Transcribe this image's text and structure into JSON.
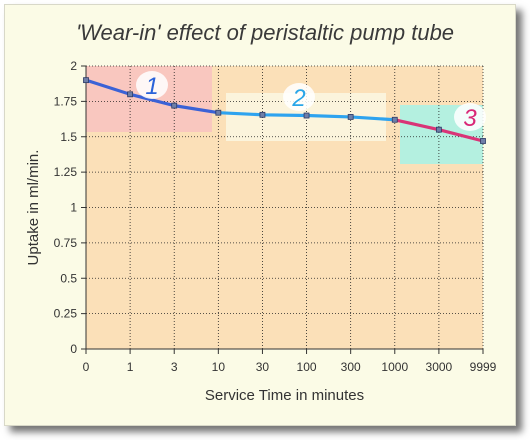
{
  "chart_data": {
    "type": "line",
    "title": "'Wear-in' effect of peristaltic pump tube",
    "xlabel": "Service Time in minutes",
    "ylabel": "Uptake in ml/min.",
    "x_scale": "categorical (log-like)",
    "categories": [
      "0",
      "1",
      "3",
      "10",
      "30",
      "100",
      "300",
      "1000",
      "3000",
      "9999"
    ],
    "y_ticks": [
      "0",
      "0.25",
      "0.5",
      "0.75",
      "1",
      "1.25",
      "1.5",
      "1.75",
      "2"
    ],
    "ylim": [
      0,
      2
    ],
    "grid": true,
    "series": [
      {
        "values": [
          1.9,
          1.8,
          1.72,
          1.67,
          1.655,
          1.65,
          1.64,
          1.62,
          1.55,
          1.47
        ]
      }
    ],
    "phases": [
      {
        "label": "1",
        "from": "0",
        "to": "10",
        "color": "#f9c7bf",
        "line_color": "#3b62d6",
        "label_color": "#2a62d9"
      },
      {
        "label": "2",
        "from": "10",
        "to": "1000",
        "color": "#fbf4dc",
        "line_color": "#2ea3ef",
        "label_color": "#2aa6e8"
      },
      {
        "label": "3",
        "from": "1000",
        "to": "9999",
        "color": "#b4f0e0",
        "line_color": "#d93477",
        "label_color": "#d92877"
      }
    ],
    "plot_bg": "#fbe0b8"
  }
}
